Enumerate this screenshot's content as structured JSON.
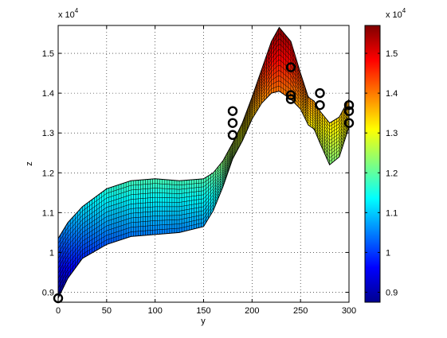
{
  "chart_data": {
    "type": "surface-profile",
    "xlabel": "y",
    "ylabel": "z",
    "title": "",
    "xlim": [
      0,
      300
    ],
    "ylim": [
      8750,
      15700
    ],
    "x_ticks": [
      0,
      50,
      100,
      150,
      200,
      250,
      300
    ],
    "x_tick_labels": [
      "0",
      "50",
      "100",
      "150",
      "200",
      "250",
      "300"
    ],
    "y_ticks": [
      9000,
      10000,
      11000,
      12000,
      13000,
      14000,
      15000
    ],
    "y_tick_labels": [
      "0.9",
      "1",
      "1.1",
      "1.2",
      "1.3",
      "1.4",
      "1.5"
    ],
    "y_exponent_label": "x 10",
    "y_exponent_power": "4",
    "grid": true,
    "surface": {
      "upper_edge": [
        [
          0,
          10350
        ],
        [
          10,
          10750
        ],
        [
          25,
          11150
        ],
        [
          50,
          11600
        ],
        [
          75,
          11800
        ],
        [
          100,
          11850
        ],
        [
          125,
          11800
        ],
        [
          150,
          11850
        ],
        [
          160,
          12000
        ],
        [
          170,
          12300
        ],
        [
          180,
          12750
        ],
        [
          190,
          13250
        ],
        [
          200,
          13900
        ],
        [
          210,
          14600
        ],
        [
          220,
          15300
        ],
        [
          228,
          15650
        ],
        [
          240,
          15300
        ],
        [
          250,
          14500
        ],
        [
          258,
          13900
        ],
        [
          264,
          13800
        ],
        [
          270,
          13550
        ],
        [
          280,
          13250
        ],
        [
          290,
          13400
        ],
        [
          300,
          13850
        ]
      ],
      "lower_edge": [
        [
          0,
          8850
        ],
        [
          10,
          9350
        ],
        [
          25,
          9850
        ],
        [
          50,
          10200
        ],
        [
          75,
          10400
        ],
        [
          100,
          10450
        ],
        [
          125,
          10500
        ],
        [
          150,
          10650
        ],
        [
          160,
          11050
        ],
        [
          170,
          11650
        ],
        [
          180,
          12350
        ],
        [
          190,
          12800
        ],
        [
          200,
          13350
        ],
        [
          210,
          13750
        ],
        [
          220,
          14000
        ],
        [
          228,
          14050
        ],
        [
          240,
          13850
        ],
        [
          250,
          13600
        ],
        [
          258,
          13200
        ],
        [
          264,
          13100
        ],
        [
          270,
          12750
        ],
        [
          280,
          12200
        ],
        [
          290,
          12400
        ],
        [
          300,
          13150
        ]
      ],
      "color_scale": "jet"
    },
    "markers": [
      {
        "x": 0,
        "y": 8850
      },
      {
        "x": 180,
        "y": 13550
      },
      {
        "x": 180,
        "y": 13250
      },
      {
        "x": 180,
        "y": 12950
      },
      {
        "x": 240,
        "y": 14650
      },
      {
        "x": 240,
        "y": 13950
      },
      {
        "x": 240,
        "y": 13850
      },
      {
        "x": 270,
        "y": 14000
      },
      {
        "x": 270,
        "y": 13700
      },
      {
        "x": 300,
        "y": 13700
      },
      {
        "x": 300,
        "y": 13550
      },
      {
        "x": 300,
        "y": 13250
      }
    ],
    "colorbar": {
      "range": [
        8750,
        15700
      ],
      "ticks": [
        9000,
        10000,
        11000,
        12000,
        13000,
        14000,
        15000
      ],
      "tick_labels": [
        "0.9",
        "1",
        "1.1",
        "1.2",
        "1.3",
        "1.4",
        "1.5"
      ],
      "exponent_label": "x 10",
      "exponent_power": "4"
    }
  }
}
